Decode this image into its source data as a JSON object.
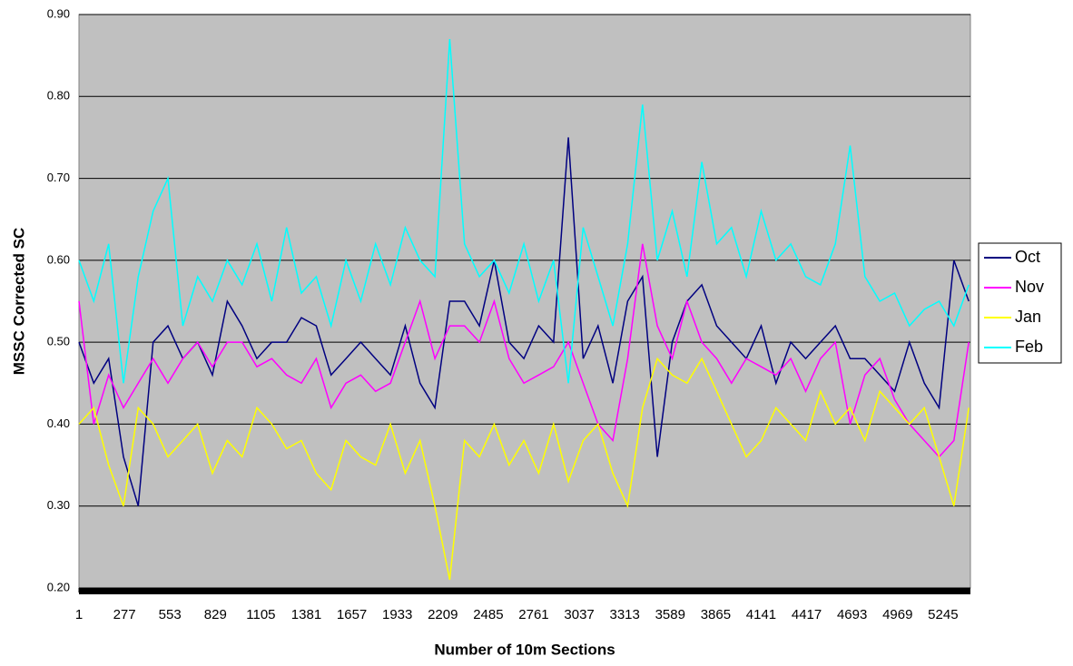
{
  "chart_data": {
    "type": "line",
    "x_label": "Number of 10m Sections",
    "y_label": "MSSC Corrected SC",
    "x": [
      1,
      91,
      181,
      271,
      361,
      451,
      541,
      631,
      721,
      811,
      901,
      991,
      1081,
      1171,
      1261,
      1351,
      1441,
      1531,
      1621,
      1711,
      1801,
      1891,
      1981,
      2071,
      2161,
      2251,
      2341,
      2431,
      2521,
      2611,
      2701,
      2791,
      2881,
      2971,
      3061,
      3151,
      3241,
      3331,
      3421,
      3511,
      3601,
      3691,
      3781,
      3871,
      3961,
      4051,
      4141,
      4231,
      4321,
      4411,
      4501,
      4591,
      4681,
      4771,
      4861,
      4951,
      5041,
      5131,
      5221,
      5311,
      5401
    ],
    "series": [
      {
        "name": "Oct",
        "color": "#000080",
        "values": [
          0.5,
          0.45,
          0.48,
          0.36,
          0.3,
          0.5,
          0.52,
          0.48,
          0.5,
          0.46,
          0.55,
          0.52,
          0.48,
          0.5,
          0.5,
          0.53,
          0.52,
          0.46,
          0.48,
          0.5,
          0.48,
          0.46,
          0.52,
          0.45,
          0.42,
          0.55,
          0.55,
          0.52,
          0.6,
          0.5,
          0.48,
          0.52,
          0.5,
          0.75,
          0.48,
          0.52,
          0.45,
          0.55,
          0.58,
          0.36,
          0.5,
          0.55,
          0.57,
          0.52,
          0.5,
          0.48,
          0.52,
          0.45,
          0.5,
          0.48,
          0.5,
          0.52,
          0.48,
          0.48,
          0.46,
          0.44,
          0.5,
          0.45,
          0.42,
          0.6,
          0.55
        ]
      },
      {
        "name": "Nov",
        "color": "#ff00ff",
        "values": [
          0.55,
          0.4,
          0.46,
          0.42,
          0.45,
          0.48,
          0.45,
          0.48,
          0.5,
          0.47,
          0.5,
          0.5,
          0.47,
          0.48,
          0.46,
          0.45,
          0.48,
          0.42,
          0.45,
          0.46,
          0.44,
          0.45,
          0.5,
          0.55,
          0.48,
          0.52,
          0.52,
          0.5,
          0.55,
          0.48,
          0.45,
          0.46,
          0.47,
          0.5,
          0.45,
          0.4,
          0.38,
          0.48,
          0.62,
          0.52,
          0.48,
          0.55,
          0.5,
          0.48,
          0.45,
          0.48,
          0.47,
          0.46,
          0.48,
          0.44,
          0.48,
          0.5,
          0.4,
          0.46,
          0.48,
          0.43,
          0.4,
          0.38,
          0.36,
          0.38,
          0.5
        ]
      },
      {
        "name": "Jan",
        "color": "#ffff00",
        "values": [
          0.4,
          0.42,
          0.35,
          0.3,
          0.42,
          0.4,
          0.36,
          0.38,
          0.4,
          0.34,
          0.38,
          0.36,
          0.42,
          0.4,
          0.37,
          0.38,
          0.34,
          0.32,
          0.38,
          0.36,
          0.35,
          0.4,
          0.34,
          0.38,
          0.3,
          0.21,
          0.38,
          0.36,
          0.4,
          0.35,
          0.38,
          0.34,
          0.4,
          0.33,
          0.38,
          0.4,
          0.34,
          0.3,
          0.42,
          0.48,
          0.46,
          0.45,
          0.48,
          0.44,
          0.4,
          0.36,
          0.38,
          0.42,
          0.4,
          0.38,
          0.44,
          0.4,
          0.42,
          0.38,
          0.44,
          0.42,
          0.4,
          0.42,
          0.36,
          0.3,
          0.42
        ]
      },
      {
        "name": "Feb",
        "color": "#00ffff",
        "values": [
          0.6,
          0.55,
          0.62,
          0.45,
          0.58,
          0.66,
          0.7,
          0.52,
          0.58,
          0.55,
          0.6,
          0.57,
          0.62,
          0.55,
          0.64,
          0.56,
          0.58,
          0.52,
          0.6,
          0.55,
          0.62,
          0.57,
          0.64,
          0.6,
          0.58,
          0.87,
          0.62,
          0.58,
          0.6,
          0.56,
          0.62,
          0.55,
          0.6,
          0.45,
          0.64,
          0.58,
          0.52,
          0.62,
          0.79,
          0.6,
          0.66,
          0.58,
          0.72,
          0.62,
          0.64,
          0.58,
          0.66,
          0.6,
          0.62,
          0.58,
          0.57,
          0.62,
          0.74,
          0.58,
          0.55,
          0.56,
          0.52,
          0.54,
          0.55,
          0.52,
          0.57
        ]
      }
    ],
    "xlim": [
      1,
      5411
    ],
    "xticks": [
      1,
      277,
      553,
      829,
      1105,
      1381,
      1657,
      1933,
      2209,
      2485,
      2761,
      3037,
      3313,
      3589,
      3865,
      4141,
      4417,
      4693,
      4969,
      5245
    ],
    "ylim": [
      0.2,
      0.9
    ],
    "yticks": [
      {
        "value": 0.2,
        "label": "0.20"
      },
      {
        "value": 0.3,
        "label": "0.30"
      },
      {
        "value": 0.4,
        "label": "0.40"
      },
      {
        "value": 0.5,
        "label": "0.50"
      },
      {
        "value": 0.6,
        "label": "0.60"
      },
      {
        "value": 0.7,
        "label": "0.70"
      },
      {
        "value": 0.8,
        "label": "0.80"
      },
      {
        "value": 0.9,
        "label": "0.90"
      }
    ],
    "grid": true,
    "legend": "right"
  }
}
